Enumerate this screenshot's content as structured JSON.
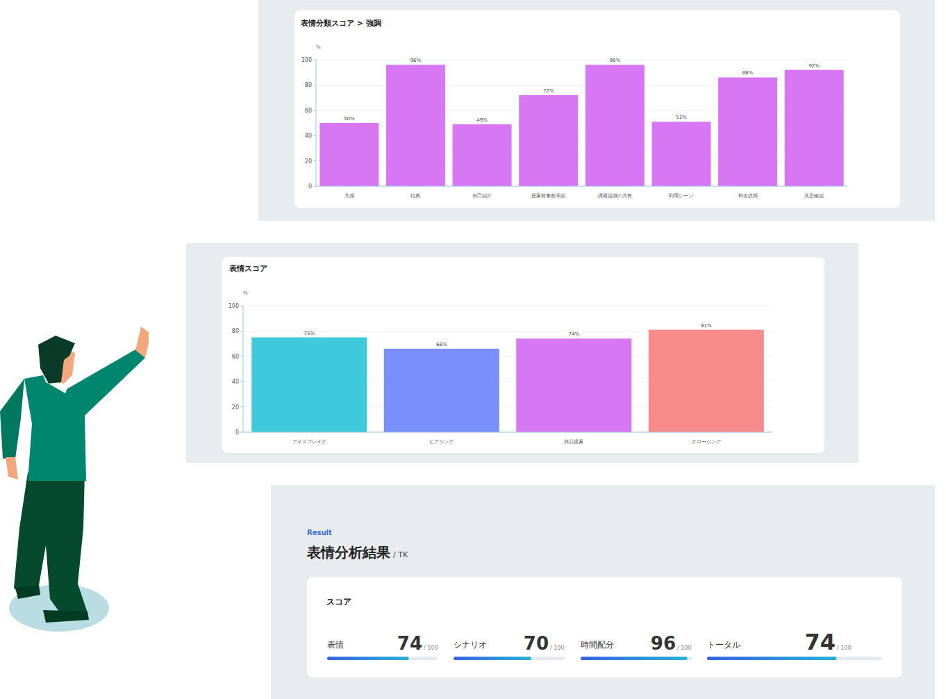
{
  "chart_data": [
    {
      "type": "bar",
      "title": "表情分類スコア > 強調",
      "ylabel": "%",
      "categories": [
        "共感",
        "特典",
        "自己紹介",
        "提案前事前承諾",
        "課題認識の共有",
        "利用シーン",
        "料金説明",
        "意思確認"
      ],
      "values": [
        50,
        96,
        49,
        72,
        96,
        51,
        86,
        92
      ],
      "value_labels": [
        "50%",
        "96%",
        "49%",
        "72%",
        "96%",
        "51%",
        "86%",
        "92%"
      ],
      "color": "#d877f3",
      "ylim": [
        0,
        100
      ],
      "yticks": [
        0,
        20,
        40,
        60,
        80,
        100
      ],
      "grid": true,
      "data_labels": true
    },
    {
      "type": "bar",
      "title": "表情スコア",
      "ylabel": "%",
      "categories": [
        "アイスブレイク",
        "ヒアリング",
        "商品提案",
        "クロージング"
      ],
      "values": [
        75,
        66,
        74,
        81
      ],
      "value_labels": [
        "75%",
        "66%",
        "74%",
        "81%"
      ],
      "colors": [
        "#3ecadc",
        "#7a8ffc",
        "#d877f3",
        "#f88a8a"
      ],
      "ylim": [
        0,
        100
      ],
      "yticks": [
        0,
        20,
        40,
        60,
        80,
        100
      ],
      "grid": true,
      "data_labels": true
    }
  ],
  "result": {
    "kicker": "Result",
    "title": "表情分析結果",
    "subtitle": "/ TK",
    "card_title": "スコア",
    "max": 100,
    "max_label": "/ 100",
    "items": [
      {
        "label": "表情",
        "value": 74
      },
      {
        "label": "シナリオ",
        "value": 70
      },
      {
        "label": "時間配分",
        "value": 96
      },
      {
        "label": "トータル",
        "value": 74
      }
    ]
  }
}
